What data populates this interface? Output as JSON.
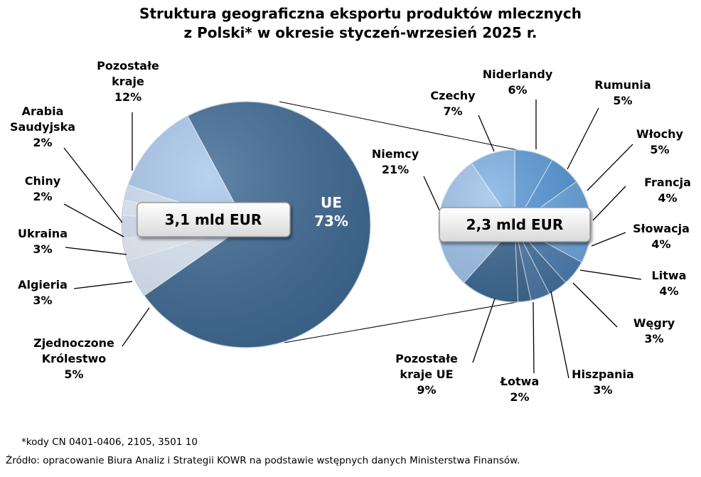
{
  "title_line1": "Struktura geograficzna eksportu produktów mlecznych",
  "title_line2": "z Polski* w okresie styczeń-wrzesień 2025 r.",
  "footnote": "*kody CN 0401-0406, 2105, 3501 10",
  "source": "Źródło: opracowanie Biura Analiz i Strategii KOWR na podstawie wstępnych danych Ministerstwa Finansów.",
  "chart_data": [
    {
      "type": "pie",
      "total_label": "3,1 mld EUR",
      "slices": [
        {
          "name": "UE",
          "value": 73,
          "label": "73%",
          "color": "#3f6a94"
        },
        {
          "name": "Zjednoczone Królestwo",
          "value": 5,
          "label": "5%",
          "color": "#dce8f7"
        },
        {
          "name": "Algieria",
          "value": 3,
          "label": "3%",
          "color": "#e6eef9"
        },
        {
          "name": "Ukraina",
          "value": 3,
          "label": "3%",
          "color": "#d6e3f4"
        },
        {
          "name": "Chiny",
          "value": 2,
          "label": "2%",
          "color": "#e2ecf8"
        },
        {
          "name": "Arabia Saudyjska",
          "value": 2,
          "label": "2%",
          "color": "#cfdff3"
        },
        {
          "name": "Pozostałe kraje",
          "value": 12,
          "label": "12%",
          "color": "#a9c7ec"
        }
      ]
    },
    {
      "type": "pie",
      "total_label": "2,3 mld EUR",
      "slices": [
        {
          "name": "Niderlandy",
          "value": 6,
          "label": "6%",
          "color": "#5d9bd8"
        },
        {
          "name": "Rumunia",
          "value": 5,
          "label": "5%",
          "color": "#5597d8"
        },
        {
          "name": "Włochy",
          "value": 5,
          "label": "5%",
          "color": "#6aa5df"
        },
        {
          "name": "Francja",
          "value": 4,
          "label": "4%",
          "color": "#5a9ad9"
        },
        {
          "name": "Słowacja",
          "value": 4,
          "label": "4%",
          "color": "#6fa8e0"
        },
        {
          "name": "Litwa",
          "value": 4,
          "label": "4%",
          "color": "#4f7fb3"
        },
        {
          "name": "Węgry",
          "value": 3,
          "label": "3%",
          "color": "#45729f"
        },
        {
          "name": "Hiszpania",
          "value": 3,
          "label": "3%",
          "color": "#4b79a9"
        },
        {
          "name": "Łotwa",
          "value": 2,
          "label": "2%",
          "color": "#3f6a94"
        },
        {
          "name": "Pozostałe kraje UE",
          "value": 9,
          "label": "9%",
          "color": "#3d6893"
        },
        {
          "name": "Niemcy",
          "value": 21,
          "label": "21%",
          "color": "#9fc3ea"
        },
        {
          "name": "Czechy",
          "value": 7,
          "label": "7%",
          "color": "#7fb2e5"
        }
      ]
    }
  ]
}
